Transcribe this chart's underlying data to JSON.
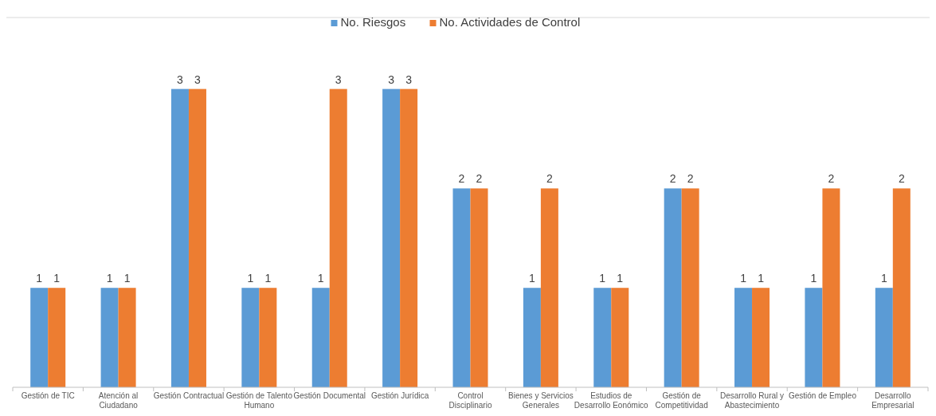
{
  "chart_data": {
    "type": "bar",
    "categories": [
      "Gestión de TIC",
      "Atención al Ciudadano",
      "Gestión Contractual",
      "Gestión de Talento Humano",
      "Gestión Documental",
      "Gestión Jurídica",
      "Control Disciplinario",
      "Bienes y Servicios Generales",
      "Estudios de Desarrollo Eonómico",
      "Gestión de Competitividad",
      "Desarrollo Rural y Abastecimiento",
      "Gestión de Empleo",
      "Desarrollo Empresarial"
    ],
    "series": [
      {
        "name": "No. Riesgos",
        "color": "#5b9bd5",
        "values": [
          1,
          1,
          3,
          1,
          1,
          3,
          2,
          1,
          1,
          2,
          1,
          1,
          1
        ]
      },
      {
        "name": "No. Actividades de Control",
        "color": "#ed7d31",
        "values": [
          1,
          1,
          3,
          1,
          3,
          3,
          2,
          2,
          1,
          2,
          1,
          2,
          2
        ]
      }
    ],
    "data_labels": true,
    "legend": "top",
    "grid": false
  }
}
